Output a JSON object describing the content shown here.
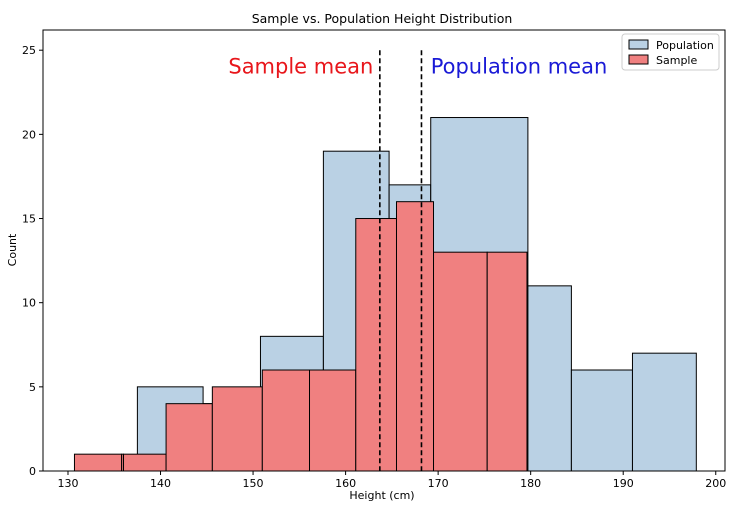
{
  "chart_data": {
    "type": "bar",
    "title": "Sample vs. Population Height Distribution",
    "xlabel": "Height (cm)",
    "ylabel": "Count",
    "xlim": [
      127.3,
      201.0
    ],
    "ylim": [
      0,
      26.2
    ],
    "xticks": [
      130,
      140,
      150,
      160,
      170,
      180,
      190,
      200
    ],
    "yticks": [
      0,
      5,
      10,
      15,
      20,
      25
    ],
    "grid": false,
    "legend_position": "top-right",
    "series": [
      {
        "name": "Population",
        "color": "#a9c5dd",
        "edgecolor": "#000000",
        "alpha": 0.8,
        "bins": [
          {
            "x0": 137.5,
            "x1": 144.6,
            "count": 5
          },
          {
            "x0": 144.6,
            "x1": 150.8,
            "count": 4
          },
          {
            "x0": 150.8,
            "x1": 157.6,
            "count": 8
          },
          {
            "x0": 157.6,
            "x1": 164.7,
            "count": 19
          },
          {
            "x0": 164.7,
            "x1": 169.2,
            "count": 17
          },
          {
            "x0": 169.2,
            "x1": 179.7,
            "count": 21
          },
          {
            "x0": 179.7,
            "x1": 184.4,
            "count": 11
          },
          {
            "x0": 184.4,
            "x1": 191.0,
            "count": 6
          },
          {
            "x0": 191.0,
            "x1": 197.9,
            "count": 7
          }
        ]
      },
      {
        "name": "Sample",
        "color": "#f08080",
        "edgecolor": "#000000",
        "alpha": 1.0,
        "bins": [
          {
            "x0": 130.7,
            "x1": 135.8,
            "count": 1
          },
          {
            "x0": 135.8,
            "x1": 136.0,
            "count": 1
          },
          {
            "x0": 136.0,
            "x1": 140.6,
            "count": 1
          },
          {
            "x0": 140.6,
            "x1": 145.6,
            "count": 4
          },
          {
            "x0": 145.6,
            "x1": 151.0,
            "count": 5
          },
          {
            "x0": 151.0,
            "x1": 156.1,
            "count": 6
          },
          {
            "x0": 156.1,
            "x1": 161.1,
            "count": 6
          },
          {
            "x0": 161.1,
            "x1": 165.5,
            "count": 15
          },
          {
            "x0": 165.5,
            "x1": 169.5,
            "count": 16
          },
          {
            "x0": 169.5,
            "x1": 175.3,
            "count": 13
          },
          {
            "x0": 175.3,
            "x1": 179.6,
            "count": 13
          }
        ]
      }
    ],
    "vlines": [
      {
        "x": 163.7,
        "style": "dashed",
        "color": "#000000"
      },
      {
        "x": 168.2,
        "style": "dashed",
        "color": "#000000"
      }
    ],
    "annotations": [
      {
        "text": "Sample mean",
        "color": "#e8161b",
        "anchor_x": 163.0,
        "align": "end",
        "y": 24.1
      },
      {
        "text": "Population mean",
        "color": "#1a1ad6",
        "anchor_x": 169.2,
        "align": "start",
        "y": 24.1
      }
    ]
  }
}
